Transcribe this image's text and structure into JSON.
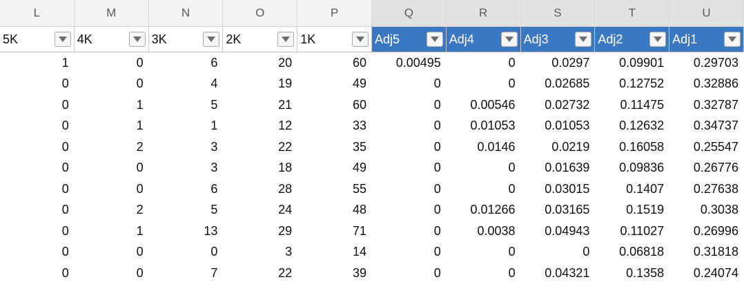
{
  "columns": [
    "L",
    "M",
    "N",
    "O",
    "P",
    "Q",
    "R",
    "S",
    "T",
    "U"
  ],
  "filters": [
    "5K",
    "4K",
    "3K",
    "2K",
    "1K",
    "Adj5",
    "Adj4",
    "Adj3",
    "Adj2",
    "Adj1"
  ],
  "selected_columns": [
    "Q",
    "R",
    "S",
    "T",
    "U"
  ],
  "selection_color": "#3b78c3",
  "filter_icon": "dropdown-arrow-icon",
  "rows": [
    [
      "1",
      "0",
      "6",
      "20",
      "60",
      "0.00495",
      "0",
      "0.0297",
      "0.09901",
      "0.29703"
    ],
    [
      "0",
      "0",
      "4",
      "19",
      "49",
      "0",
      "0",
      "0.02685",
      "0.12752",
      "0.32886"
    ],
    [
      "0",
      "1",
      "5",
      "21",
      "60",
      "0",
      "0.00546",
      "0.02732",
      "0.11475",
      "0.32787"
    ],
    [
      "0",
      "1",
      "1",
      "12",
      "33",
      "0",
      "0.01053",
      "0.01053",
      "0.12632",
      "0.34737"
    ],
    [
      "0",
      "2",
      "3",
      "22",
      "35",
      "0",
      "0.0146",
      "0.0219",
      "0.16058",
      "0.25547"
    ],
    [
      "0",
      "0",
      "3",
      "18",
      "49",
      "0",
      "0",
      "0.01639",
      "0.09836",
      "0.26776"
    ],
    [
      "0",
      "0",
      "6",
      "28",
      "55",
      "0",
      "0",
      "0.03015",
      "0.1407",
      "0.27638"
    ],
    [
      "0",
      "2",
      "5",
      "24",
      "48",
      "0",
      "0.01266",
      "0.03165",
      "0.1519",
      "0.3038"
    ],
    [
      "0",
      "1",
      "13",
      "29",
      "71",
      "0",
      "0.0038",
      "0.04943",
      "0.11027",
      "0.26996"
    ],
    [
      "0",
      "0",
      "0",
      "3",
      "14",
      "0",
      "0",
      "0",
      "0.06818",
      "0.31818"
    ],
    [
      "0",
      "0",
      "7",
      "22",
      "39",
      "0",
      "0",
      "0.04321",
      "0.1358",
      "0.24074"
    ]
  ]
}
